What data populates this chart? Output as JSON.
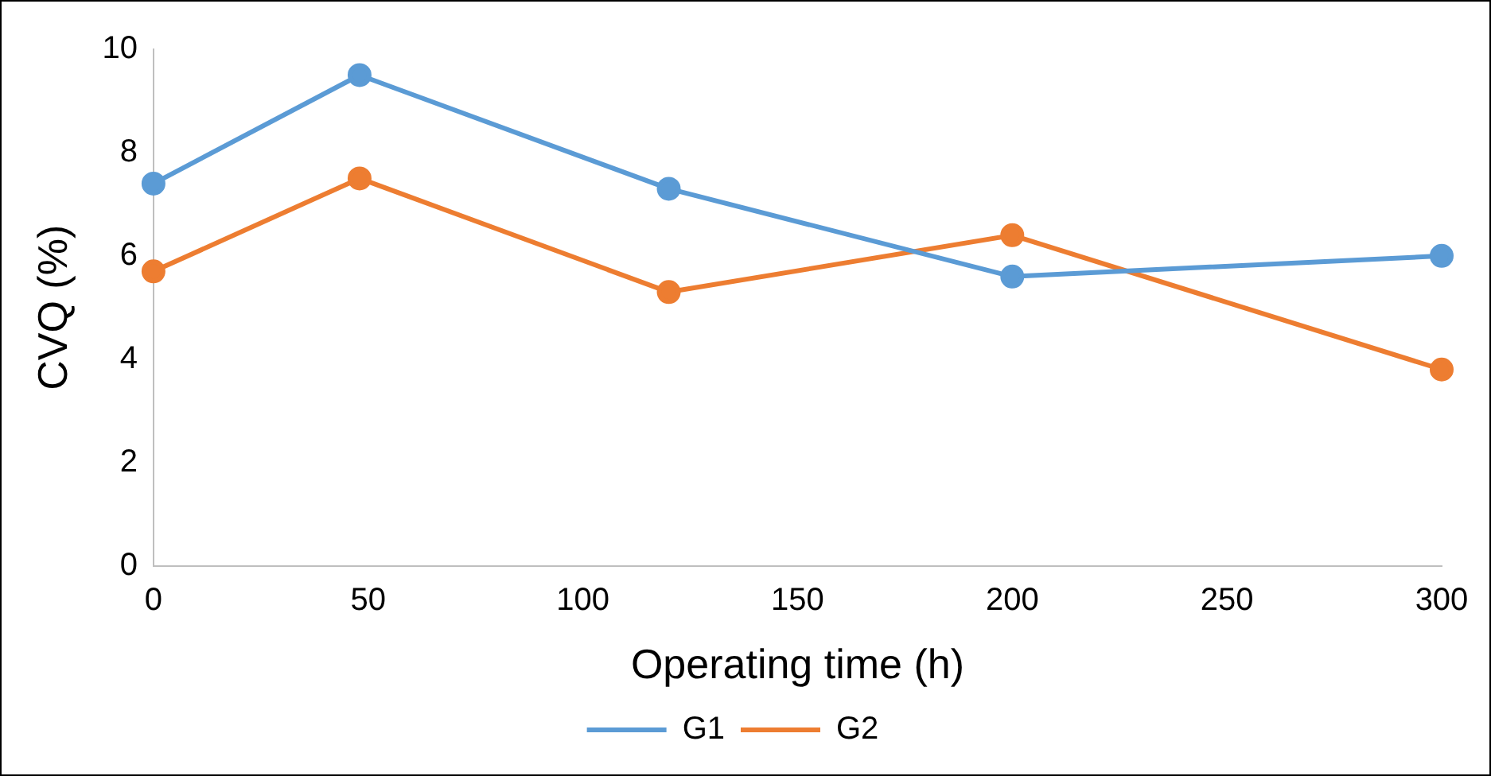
{
  "chart_data": {
    "type": "line",
    "xlabel": "Operating time (h)",
    "ylabel": "CVQ (%)",
    "series": [
      {
        "name": "G1",
        "color": "#5b9bd5",
        "x": [
          0,
          48,
          120,
          200,
          300
        ],
        "values": [
          7.4,
          9.5,
          7.3,
          5.6,
          6.0
        ]
      },
      {
        "name": "G2",
        "color": "#ed7d31",
        "x": [
          0,
          48,
          120,
          200,
          300
        ],
        "values": [
          5.7,
          7.5,
          5.3,
          6.4,
          3.8
        ]
      }
    ],
    "xlim": [
      0,
      300
    ],
    "xticks": [
      0,
      50,
      100,
      150,
      200,
      250,
      300
    ],
    "ylim": [
      0,
      10
    ],
    "yticks": [
      0,
      2,
      4,
      6,
      8,
      10
    ],
    "grid": false,
    "legend": "bottom",
    "marker": "circle",
    "line_style": "solid"
  }
}
